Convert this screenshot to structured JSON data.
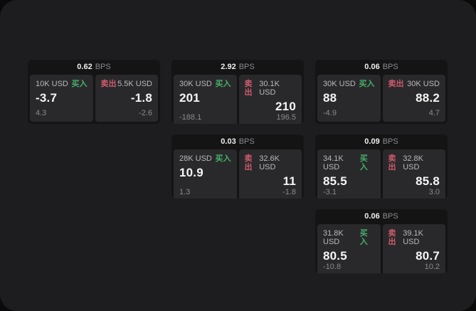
{
  "colors": {
    "buy": "#47b06a",
    "sell": "#cf5a6d",
    "window_bg": "#1d1d1f",
    "card_bg": "#141415",
    "panel_bg": "#29292b"
  },
  "cards": [
    {
      "col": 1,
      "row": 1,
      "bps": "0.62",
      "unit": "BPS",
      "buy": {
        "side": "买入",
        "notional": "10K USD",
        "price": "-3.7",
        "delta": "4.3"
      },
      "sell": {
        "side": "卖出",
        "notional": "5.5K USD",
        "price": "-1.8",
        "delta": "-2.6"
      }
    },
    {
      "col": 2,
      "row": 1,
      "bps": "2.92",
      "unit": "BPS",
      "buy": {
        "side": "买入",
        "notional": "30K USD",
        "price": "201",
        "delta": "-188.1"
      },
      "sell": {
        "side": "卖出",
        "notional": "30.1K USD",
        "price": "210",
        "delta": "196.5"
      }
    },
    {
      "col": 3,
      "row": 1,
      "bps": "0.06",
      "unit": "BPS",
      "buy": {
        "side": "买入",
        "notional": "30K USD",
        "price": "88",
        "delta": "-4.9"
      },
      "sell": {
        "side": "卖出",
        "notional": "30K USD",
        "price": "88.2",
        "delta": "4.7"
      }
    },
    {
      "col": 2,
      "row": 2,
      "bps": "0.03",
      "unit": "BPS",
      "buy": {
        "side": "买入",
        "notional": "28K USD",
        "price": "10.9",
        "delta": "1.3"
      },
      "sell": {
        "side": "卖出",
        "notional": "32.6K USD",
        "price": "11",
        "delta": "-1.8"
      }
    },
    {
      "col": 3,
      "row": 2,
      "bps": "0.09",
      "unit": "BPS",
      "buy": {
        "side": "买入",
        "notional": "34.1K USD",
        "price": "85.5",
        "delta": "-3.1"
      },
      "sell": {
        "side": "卖出",
        "notional": "32.8K USD",
        "price": "85.8",
        "delta": "3.0"
      }
    },
    {
      "col": 3,
      "row": 3,
      "bps": "0.06",
      "unit": "BPS",
      "buy": {
        "side": "买入",
        "notional": "31.8K USD",
        "price": "80.5",
        "delta": "-10.8"
      },
      "sell": {
        "side": "卖出",
        "notional": "39.1K USD",
        "price": "80.7",
        "delta": "10.2"
      }
    }
  ]
}
